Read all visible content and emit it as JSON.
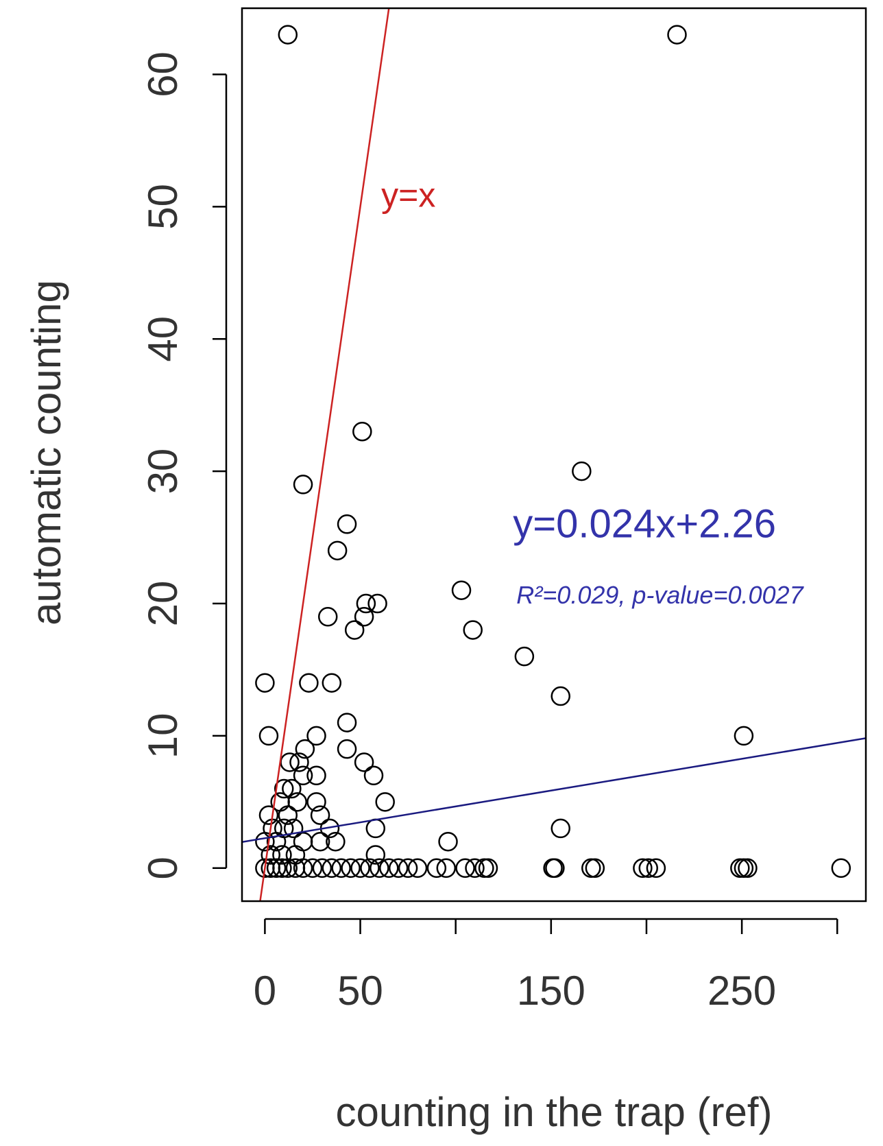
{
  "chart_data": {
    "type": "scatter",
    "xlabel": "counting in the trap (ref)",
    "ylabel": "automatic counting",
    "xlim": [
      -12,
      315
    ],
    "ylim": [
      -2.5,
      65
    ],
    "x_ticks": [
      0,
      50,
      100,
      150,
      200,
      250,
      300
    ],
    "x_tick_labels": [
      "0",
      "50",
      "",
      "150",
      "",
      "250",
      ""
    ],
    "y_ticks": [
      0,
      10,
      20,
      30,
      40,
      50,
      60
    ],
    "y_tick_labels": [
      "0",
      "10",
      "20",
      "30",
      "40",
      "50",
      "60"
    ],
    "grid": false,
    "colors": {
      "points": "#000000",
      "identity_line": "#cc2222",
      "regression_line": "#1a1a80",
      "annotation": "#3333aa",
      "identity_label": "#cc2222"
    },
    "lines": [
      {
        "type": "identity",
        "slope": 1,
        "intercept": 0,
        "label": "y=x",
        "label_at": [
          61,
          50
        ]
      },
      {
        "type": "regression",
        "slope": 0.024,
        "intercept": 2.26
      }
    ],
    "annotations": {
      "equation": "y=0.024x+2.26",
      "equation_at": [
        199,
        25
      ],
      "stats": "R²=0.029, p-value=0.0027",
      "stats_at": [
        207,
        20
      ]
    },
    "points": [
      [
        12,
        63
      ],
      [
        216,
        63
      ],
      [
        51,
        33
      ],
      [
        166,
        30
      ],
      [
        20,
        29
      ],
      [
        43,
        26
      ],
      [
        38,
        24
      ],
      [
        103,
        21
      ],
      [
        53,
        20
      ],
      [
        59,
        20
      ],
      [
        33,
        19
      ],
      [
        52,
        19
      ],
      [
        47,
        18
      ],
      [
        109,
        18
      ],
      [
        136,
        16
      ],
      [
        0,
        14
      ],
      [
        23,
        14
      ],
      [
        35,
        14
      ],
      [
        155,
        13
      ],
      [
        2,
        10
      ],
      [
        27,
        10
      ],
      [
        251,
        10
      ],
      [
        43,
        11
      ],
      [
        43,
        9
      ],
      [
        21,
        9
      ],
      [
        52,
        8
      ],
      [
        13,
        8
      ],
      [
        18,
        8
      ],
      [
        57,
        7
      ],
      [
        20,
        7
      ],
      [
        27,
        7
      ],
      [
        63,
        5
      ],
      [
        27,
        5
      ],
      [
        10,
        6
      ],
      [
        14,
        6
      ],
      [
        8,
        5
      ],
      [
        17,
        5
      ],
      [
        12,
        4
      ],
      [
        2,
        4
      ],
      [
        29,
        4
      ],
      [
        58,
        3
      ],
      [
        155,
        3
      ],
      [
        34,
        3
      ],
      [
        4,
        3
      ],
      [
        10,
        3
      ],
      [
        15,
        3
      ],
      [
        96,
        2
      ],
      [
        29,
        2
      ],
      [
        37,
        2
      ],
      [
        58,
        1
      ],
      [
        3,
        1
      ],
      [
        9,
        1
      ],
      [
        16,
        1
      ],
      [
        0,
        2
      ],
      [
        6,
        2
      ],
      [
        20,
        2
      ],
      [
        0,
        0
      ],
      [
        3,
        0
      ],
      [
        6,
        0
      ],
      [
        9,
        0
      ],
      [
        12,
        0
      ],
      [
        16,
        0
      ],
      [
        20,
        0
      ],
      [
        25,
        0
      ],
      [
        30,
        0
      ],
      [
        35,
        0
      ],
      [
        40,
        0
      ],
      [
        45,
        0
      ],
      [
        50,
        0
      ],
      [
        55,
        0
      ],
      [
        60,
        0
      ],
      [
        65,
        0
      ],
      [
        70,
        0
      ],
      [
        75,
        0
      ],
      [
        80,
        0
      ],
      [
        90,
        0
      ],
      [
        95,
        0
      ],
      [
        105,
        0
      ],
      [
        110,
        0
      ],
      [
        115,
        0
      ],
      [
        117,
        0
      ],
      [
        151,
        0
      ],
      [
        152,
        0
      ],
      [
        171,
        0
      ],
      [
        173,
        0
      ],
      [
        198,
        0
      ],
      [
        201,
        0
      ],
      [
        205,
        0
      ],
      [
        249,
        0
      ],
      [
        251,
        0
      ],
      [
        253,
        0
      ],
      [
        302,
        0
      ]
    ]
  }
}
